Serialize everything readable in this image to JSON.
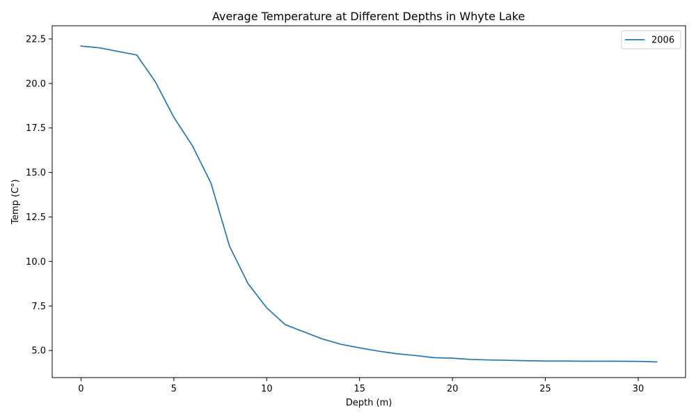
{
  "chart_data": {
    "type": "line",
    "title": "Average Temperature at Different Depths in Whyte Lake",
    "xlabel": "Depth (m)",
    "ylabel": "Temp (C°)",
    "xlim": [
      -1.55,
      32.55
    ],
    "ylim": [
      3.48,
      23.24
    ],
    "xticks": [
      0,
      5,
      10,
      15,
      20,
      25,
      30
    ],
    "xtick_labels": [
      "0",
      "5",
      "10",
      "15",
      "20",
      "25",
      "30"
    ],
    "yticks": [
      5.0,
      7.5,
      10.0,
      12.5,
      15.0,
      17.5,
      20.0,
      22.5
    ],
    "ytick_labels": [
      "5.0",
      "7.5",
      "10.0",
      "12.5",
      "15.0",
      "17.5",
      "20.0",
      "22.5"
    ],
    "grid": false,
    "legend_position": "top-right",
    "series": [
      {
        "name": "2006",
        "color": "#1f77b4",
        "x": [
          0,
          1,
          2,
          3,
          4,
          5,
          6,
          7,
          8,
          9,
          10,
          11,
          12,
          13,
          14,
          15,
          16,
          17,
          18,
          19,
          20,
          21,
          22,
          23,
          24,
          25,
          26,
          27,
          28,
          29,
          30,
          31
        ],
        "y": [
          22.1,
          22.0,
          21.8,
          21.6,
          20.1,
          18.1,
          16.5,
          14.4,
          10.85,
          8.75,
          7.4,
          6.45,
          6.05,
          5.65,
          5.35,
          5.15,
          4.97,
          4.82,
          4.72,
          4.6,
          4.57,
          4.5,
          4.47,
          4.45,
          4.43,
          4.41,
          4.41,
          4.4,
          4.4,
          4.4,
          4.39,
          4.36
        ]
      }
    ]
  }
}
